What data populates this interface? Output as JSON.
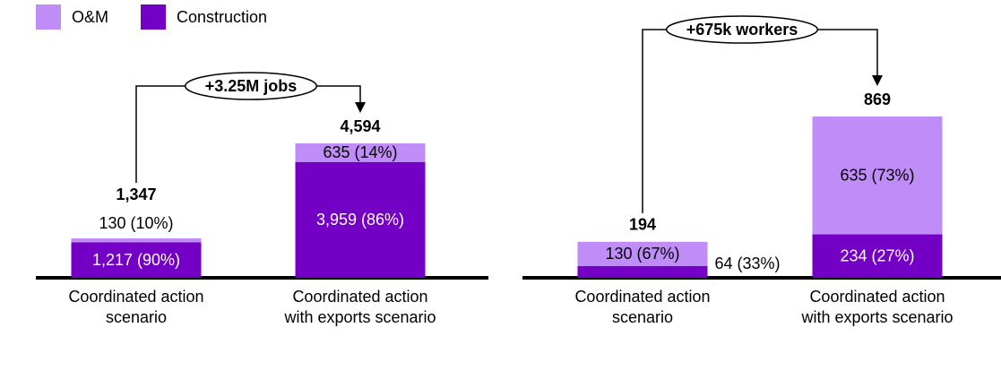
{
  "chart_data": [
    {
      "type": "bar",
      "stacked": true,
      "annotation": "+3.25M jobs",
      "categories": [
        "Coordinated action scenario",
        "Coordinated action with exports scenario"
      ],
      "series": [
        {
          "name": "Construction",
          "color": "#7300c4",
          "values": [
            1217,
            3959
          ],
          "value_labels": [
            "1,217 (90%)",
            "3,959 (86%)"
          ]
        },
        {
          "name": "O&M",
          "color": "#c08cf7",
          "values": [
            130,
            635
          ],
          "value_labels": [
            "130 (10%)",
            "635 (14%)"
          ]
        }
      ],
      "totals": [
        1347,
        4594
      ],
      "total_labels": [
        "1,347",
        "4,594"
      ]
    },
    {
      "type": "bar",
      "stacked": true,
      "annotation": "+675k workers",
      "categories": [
        "Coordinated action scenario",
        "Coordinated action with exports scenario"
      ],
      "series": [
        {
          "name": "Construction",
          "color": "#7300c4",
          "values": [
            64,
            234
          ],
          "value_labels": [
            "64 (33%)",
            "234 (27%)"
          ]
        },
        {
          "name": "O&M",
          "color": "#c08cf7",
          "values": [
            130,
            635
          ],
          "value_labels": [
            "130 (67%)",
            "635 (73%)"
          ]
        }
      ],
      "totals": [
        194,
        869
      ]
    }
  ]
}
